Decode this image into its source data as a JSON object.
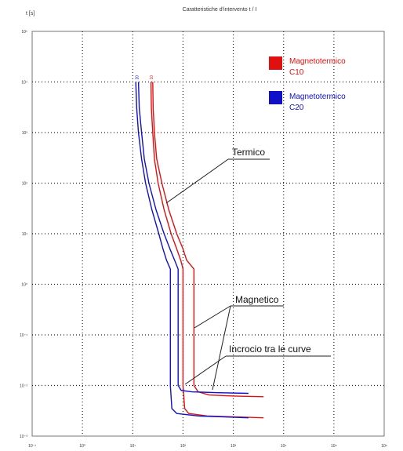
{
  "chart_data": {
    "type": "line",
    "title": "Caratteristiche d'intervento t / I",
    "ylabel": "t [s]",
    "xlabel": "",
    "x_scale": "log",
    "y_scale": "log",
    "xlim": [
      0.1,
      1000000
    ],
    "ylim": [
      0.001,
      100000
    ],
    "grid": true,
    "legend_position": "top-right",
    "x_ticks": [
      {
        "value": 0.1,
        "label": "10⁻¹"
      },
      {
        "value": 1,
        "label": "10⁰"
      },
      {
        "value": 10,
        "label": "10¹"
      },
      {
        "value": 100,
        "label": "10²"
      },
      {
        "value": 1000,
        "label": "10³"
      },
      {
        "value": 10000,
        "label": "10⁴"
      },
      {
        "value": 100000,
        "label": "10⁵"
      },
      {
        "value": 1000000,
        "label": "10⁶"
      }
    ],
    "y_ticks": [
      {
        "value": 0.001,
        "label": "10⁻³"
      },
      {
        "value": 0.01,
        "label": "10⁻²"
      },
      {
        "value": 0.1,
        "label": "10⁻¹"
      },
      {
        "value": 1,
        "label": "10⁰"
      },
      {
        "value": 10,
        "label": "10¹"
      },
      {
        "value": 100,
        "label": "10²"
      },
      {
        "value": 1000,
        "label": "10³"
      },
      {
        "value": 10000,
        "label": "10⁴"
      },
      {
        "value": 100000,
        "label": "10⁵"
      }
    ],
    "series": [
      {
        "name": "Magnetotermico C10",
        "color": "#e01010",
        "curve_label": "10",
        "upper": [
          [
            25,
            10000
          ],
          [
            25.5,
            3000
          ],
          [
            27,
            1000
          ],
          [
            30,
            300
          ],
          [
            38,
            100
          ],
          [
            52,
            30
          ],
          [
            75,
            10
          ],
          [
            100,
            5
          ],
          [
            118,
            3
          ],
          [
            165,
            2
          ],
          [
            165,
            0.2
          ],
          [
            165,
            0.01
          ],
          [
            200,
            0.0075
          ],
          [
            330,
            0.0065
          ],
          [
            1000,
            0.0062
          ],
          [
            4000,
            0.006
          ]
        ],
        "lower": [
          [
            23,
            10000
          ],
          [
            23.5,
            3000
          ],
          [
            25,
            1000
          ],
          [
            27,
            300
          ],
          [
            32,
            100
          ],
          [
            42,
            30
          ],
          [
            58,
            10
          ],
          [
            75,
            5
          ],
          [
            90,
            3
          ],
          [
            100,
            2
          ],
          [
            100,
            0.02
          ],
          [
            100,
            0.01
          ],
          [
            108,
            0.0035
          ],
          [
            130,
            0.0028
          ],
          [
            300,
            0.0025
          ],
          [
            1000,
            0.0024
          ],
          [
            4000,
            0.0023
          ]
        ]
      },
      {
        "name": "Magnetotermico C20",
        "color": "#1010c8",
        "curve_label": "20",
        "upper": [
          [
            13,
            10000
          ],
          [
            13.5,
            3000
          ],
          [
            15,
            1000
          ],
          [
            17,
            300
          ],
          [
            21,
            100
          ],
          [
            29,
            30
          ],
          [
            42,
            10
          ],
          [
            55,
            5
          ],
          [
            68,
            3
          ],
          [
            80,
            2
          ],
          [
            80,
            0.2
          ],
          [
            80,
            0.01
          ],
          [
            92,
            0.008
          ],
          [
            150,
            0.0075
          ],
          [
            500,
            0.0072
          ],
          [
            2000,
            0.007
          ]
        ],
        "lower": [
          [
            11.5,
            10000
          ],
          [
            12,
            3000
          ],
          [
            13,
            1000
          ],
          [
            15,
            300
          ],
          [
            18,
            100
          ],
          [
            24,
            30
          ],
          [
            33,
            10
          ],
          [
            40,
            5
          ],
          [
            47,
            3
          ],
          [
            56,
            2
          ],
          [
            56,
            0.02
          ],
          [
            56,
            0.01
          ],
          [
            60,
            0.0035
          ],
          [
            75,
            0.0028
          ],
          [
            200,
            0.0025
          ],
          [
            600,
            0.0024
          ],
          [
            2000,
            0.0023
          ]
        ]
      }
    ],
    "annotations": {
      "termico": "Termico",
      "magnetico": "Magnetico",
      "incrocio": "Incrocio tra le curve"
    }
  }
}
